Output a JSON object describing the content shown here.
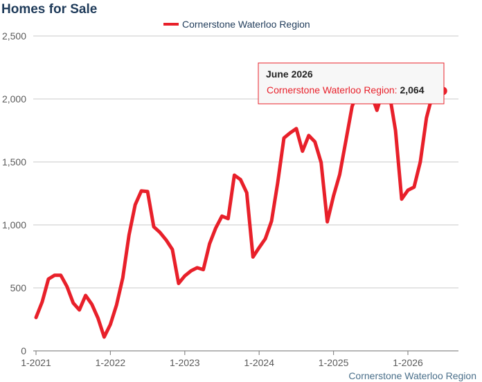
{
  "chart_data": {
    "type": "line",
    "title": "Homes for Sale",
    "xlabel": "",
    "ylabel": "",
    "ylim": [
      0,
      2500
    ],
    "y_ticks": [
      0,
      500,
      1000,
      1500,
      2000,
      2500
    ],
    "y_tick_labels": [
      "0",
      "500",
      "1,000",
      "1,500",
      "2,000",
      "2,500"
    ],
    "x_tick_labels": [
      "1-2021",
      "1-2022",
      "1-2023",
      "1-2024",
      "1-2025",
      "1-2026"
    ],
    "grid": true,
    "legend_position": "top",
    "colors": {
      "series": "#e8202a",
      "title": "#1f3b5a"
    },
    "series": [
      {
        "name": "Cornerstone Waterloo Region",
        "x": [
          "1-2021",
          "2-2021",
          "3-2021",
          "4-2021",
          "5-2021",
          "6-2021",
          "7-2021",
          "8-2021",
          "9-2021",
          "10-2021",
          "11-2021",
          "12-2021",
          "1-2022",
          "2-2022",
          "3-2022",
          "4-2022",
          "5-2022",
          "6-2022",
          "7-2022",
          "8-2022",
          "9-2022",
          "10-2022",
          "11-2022",
          "12-2022",
          "1-2023",
          "2-2023",
          "3-2023",
          "4-2023",
          "5-2023",
          "6-2023",
          "7-2023",
          "8-2023",
          "9-2023",
          "10-2023",
          "11-2023",
          "12-2023",
          "1-2024",
          "2-2024",
          "3-2024",
          "4-2024",
          "5-2024",
          "6-2024",
          "7-2024",
          "8-2024",
          "9-2024",
          "10-2024",
          "11-2024",
          "12-2024",
          "1-2025",
          "2-2025",
          "3-2025",
          "4-2025",
          "5-2025",
          "6-2025",
          "7-2025",
          "8-2025",
          "9-2025",
          "10-2025",
          "11-2025",
          "12-2025",
          "1-2026",
          "2-2026",
          "3-2026",
          "4-2026",
          "5-2026",
          "6-2026"
        ],
        "values": [
          265,
          390,
          570,
          600,
          600,
          510,
          380,
          325,
          440,
          370,
          260,
          110,
          210,
          365,
          580,
          920,
          1160,
          1270,
          1265,
          985,
          940,
          880,
          805,
          535,
          595,
          635,
          660,
          645,
          850,
          975,
          1070,
          1050,
          1395,
          1360,
          1255,
          745,
          820,
          890,
          1030,
          1335,
          1690,
          1730,
          1765,
          1585,
          1710,
          1660,
          1495,
          1025,
          1230,
          1400,
          1670,
          1940,
          2070,
          2100,
          2050,
          1910,
          2070,
          2050,
          1750,
          1205,
          1275,
          1300,
          1500,
          1850,
          2040,
          2064
        ]
      }
    ],
    "tooltip": {
      "title": "June 2026",
      "series_label": "Cornerstone Waterloo Region:",
      "value": "2,064"
    },
    "credit": "Cornerstone Waterloo Region"
  }
}
